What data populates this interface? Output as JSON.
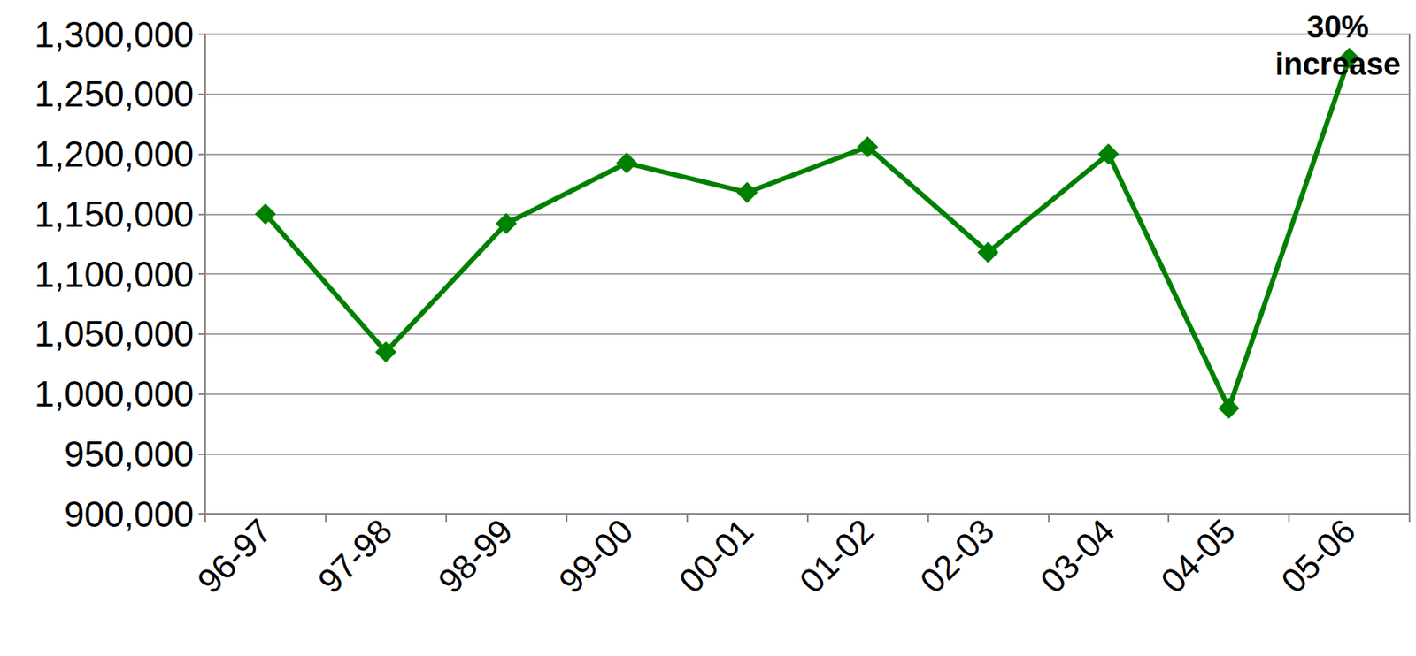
{
  "chart_data": {
    "type": "line",
    "categories": [
      "96-97",
      "97-98",
      "98-99",
      "99-00",
      "00-01",
      "01-02",
      "02-03",
      "03-04",
      "04-05",
      "05-06"
    ],
    "values": [
      1150000,
      1035000,
      1142000,
      1192500,
      1168000,
      1206000,
      1118000,
      1200000,
      988000,
      1280000
    ],
    "color": "#008000",
    "marker": "diamond",
    "ylim": [
      900000,
      1300000
    ],
    "yticks": [
      {
        "value": 900000,
        "label": "900,000"
      },
      {
        "value": 950000,
        "label": "950,000"
      },
      {
        "value": 1000000,
        "label": "1,000,000"
      },
      {
        "value": 1050000,
        "label": "1,050,000"
      },
      {
        "value": 1100000,
        "label": "1,100,000"
      },
      {
        "value": 1150000,
        "label": "1,150,000"
      },
      {
        "value": 1200000,
        "label": "1,200,000"
      },
      {
        "value": 1250000,
        "label": "1,250,000"
      },
      {
        "value": 1300000,
        "label": "1,300,000"
      }
    ],
    "grid": true,
    "annotations": [
      {
        "text": "30% increase",
        "x": "05-06",
        "y": 1280000
      }
    ]
  }
}
